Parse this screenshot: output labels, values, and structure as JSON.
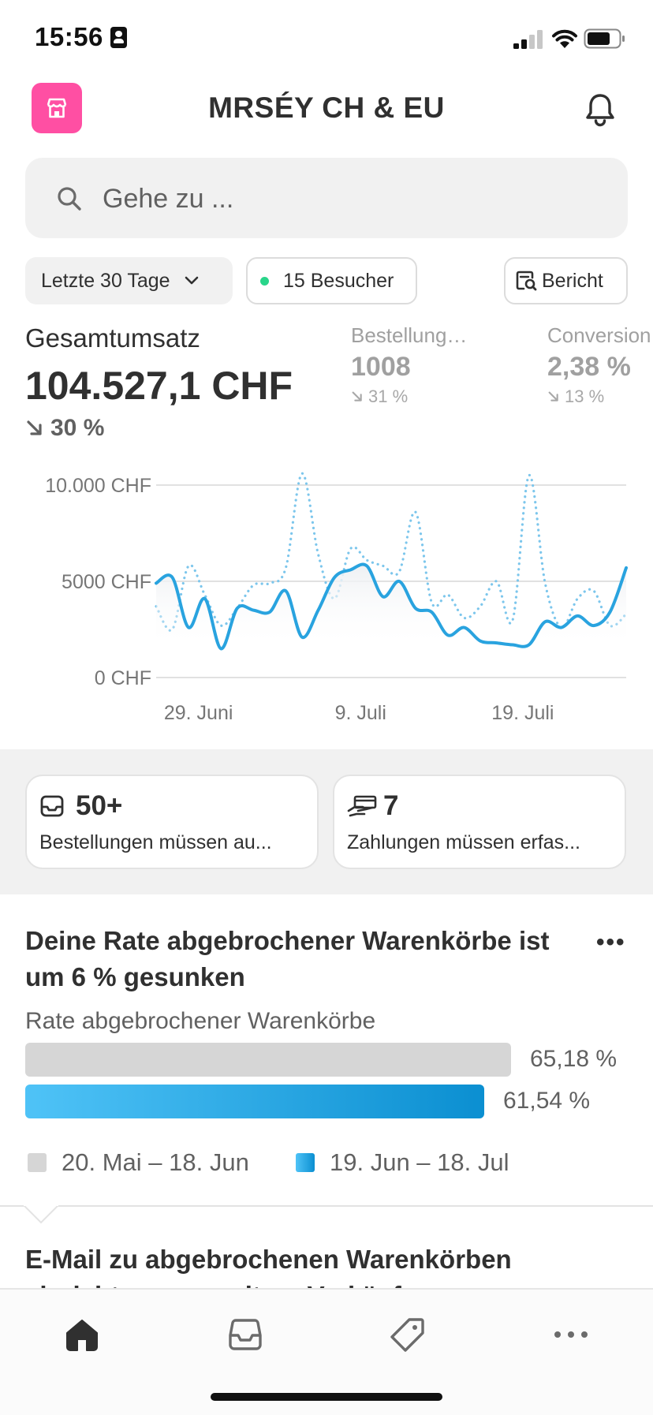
{
  "status_bar": {
    "time": "15:56"
  },
  "header": {
    "title": "MRSÉY CH & EU"
  },
  "search": {
    "placeholder": "Gehe zu ..."
  },
  "filters": {
    "date_range": "Letzte 30 Tage",
    "visitors": "15 Besucher",
    "report": "Bericht"
  },
  "metrics": {
    "total_sales": {
      "label": "Gesamtumsatz",
      "value": "104.527,1 CHF",
      "change": "30 %"
    },
    "orders": {
      "label": "Bestellungen ins...",
      "value": "1008",
      "change": "31 %"
    },
    "conversion": {
      "label": "Conversion",
      "value": "2,38 %",
      "change": "13 %"
    }
  },
  "chart_data": {
    "type": "line",
    "y_tick_labels": [
      "10.000 CHF",
      "5000 CHF",
      "0 CHF"
    ],
    "x_tick_labels": [
      "29. Juni",
      "9. Juli",
      "19. Juli"
    ],
    "ylim": [
      0,
      10000
    ],
    "grid": true,
    "series": [
      {
        "style": "solid",
        "color": "#29a3df",
        "values": [
          4900,
          5200,
          2600,
          4100,
          1500,
          3600,
          3500,
          3400,
          4500,
          2100,
          3500,
          5200,
          5600,
          5800,
          4200,
          5000,
          3600,
          3400,
          2200,
          2600,
          1900,
          1800,
          1700,
          1700,
          2900,
          2600,
          3200,
          2700,
          3400,
          5700
        ]
      },
      {
        "style": "dotted",
        "color": "#7cc6ec",
        "values": [
          3700,
          2500,
          5800,
          4300,
          2700,
          3600,
          4800,
          4900,
          5700,
          10600,
          6400,
          4100,
          6700,
          6100,
          5800,
          5500,
          8600,
          3900,
          4300,
          3100,
          3700,
          5000,
          3000,
          10500,
          4900,
          2600,
          4100,
          4500,
          2700,
          3300
        ]
      }
    ]
  },
  "action_cards": [
    {
      "value": "50+",
      "label": "Bestellungen müssen au..."
    },
    {
      "value": "7",
      "label": "Zahlungen müssen erfas..."
    }
  ],
  "insight": {
    "title": "Deine Rate abgebrochener Warenkörbe ist um 6 % gesunken",
    "metric_label": "Rate abgebrochener Warenkörbe",
    "bars": [
      {
        "value": "65,18 %",
        "fraction": 0.6518,
        "color": "#d6d6d6"
      },
      {
        "value": "61,54 %",
        "fraction": 0.6154,
        "color": "#1ba1e2"
      }
    ],
    "legend": [
      "20. Mai – 18. Jun",
      "19. Jun – 18. Jul"
    ]
  },
  "next_card": {
    "title": "E-Mail zu abgebrochenen Warenkörben einrichten, um weitere Verkäufe"
  },
  "tabbar": {
    "items": [
      "home-icon",
      "orders-icon",
      "products-icon",
      "more-icon"
    ]
  }
}
